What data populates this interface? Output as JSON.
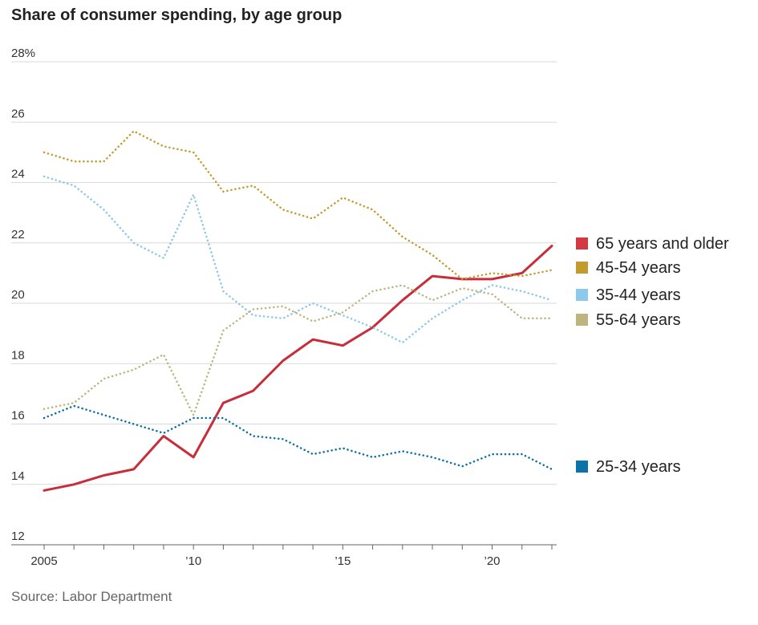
{
  "chart_data": {
    "type": "line",
    "title": "Share of consumer spending, by age group",
    "source": "Source: Labor Department",
    "xlabel": "",
    "ylabel": "",
    "xlim": [
      2005,
      2022
    ],
    "ylim": [
      12,
      28
    ],
    "grid": true,
    "y_ticks": [
      {
        "value": 28,
        "label": "28%"
      },
      {
        "value": 26,
        "label": "26"
      },
      {
        "value": 24,
        "label": "24"
      },
      {
        "value": 22,
        "label": "22"
      },
      {
        "value": 20,
        "label": "20"
      },
      {
        "value": 18,
        "label": "18"
      },
      {
        "value": 16,
        "label": "16"
      },
      {
        "value": 14,
        "label": "14"
      },
      {
        "value": 12,
        "label": "12"
      }
    ],
    "x_ticks": [
      {
        "value": 2005,
        "label": "2005"
      },
      {
        "value": 2010,
        "label": "’10"
      },
      {
        "value": 2015,
        "label": "’15"
      },
      {
        "value": 2020,
        "label": "’20"
      }
    ],
    "x": [
      2005,
      2006,
      2007,
      2008,
      2009,
      2010,
      2011,
      2012,
      2013,
      2014,
      2015,
      2016,
      2017,
      2018,
      2019,
      2020,
      2021,
      2022
    ],
    "legend_placement": "right",
    "series": [
      {
        "key": "s65",
        "name": "65 years and older",
        "color": "#c72e3a",
        "style": "solid",
        "values": [
          13.8,
          14.0,
          14.3,
          14.5,
          15.6,
          14.9,
          16.7,
          17.1,
          18.1,
          18.8,
          18.6,
          19.2,
          20.1,
          20.9,
          20.8,
          20.8,
          21.0,
          21.9
        ]
      },
      {
        "key": "s45",
        "name": "45-54 years",
        "color": "#c29a2b",
        "style": "dotted",
        "values": [
          25.0,
          24.7,
          24.7,
          25.7,
          25.2,
          25.0,
          23.7,
          23.9,
          23.1,
          22.8,
          23.5,
          23.1,
          22.2,
          21.6,
          20.8,
          21.0,
          20.9,
          21.1
        ]
      },
      {
        "key": "s35",
        "name": "35-44 years",
        "color": "#8ac7ea",
        "style": "dotted",
        "values": [
          24.2,
          23.9,
          23.1,
          22.0,
          21.5,
          23.6,
          20.4,
          19.6,
          19.5,
          20.0,
          19.6,
          19.2,
          18.7,
          19.5,
          20.1,
          20.6,
          20.4,
          20.1
        ]
      },
      {
        "key": "s55",
        "name": "55-64 years",
        "color": "#bdb47e",
        "style": "dotted",
        "values": [
          16.5,
          16.7,
          17.5,
          17.8,
          18.3,
          16.3,
          19.1,
          19.8,
          19.9,
          19.4,
          19.7,
          20.4,
          20.6,
          20.1,
          20.5,
          20.3,
          19.5,
          19.5
        ]
      },
      {
        "key": "s25",
        "name": "25-34 years",
        "color": "#0a6fa2",
        "style": "dotted",
        "values": [
          16.2,
          16.6,
          16.3,
          16.0,
          15.7,
          16.2,
          16.2,
          15.6,
          15.5,
          15.0,
          15.2,
          14.9,
          15.1,
          14.9,
          14.6,
          15.0,
          15.0,
          14.5
        ]
      }
    ],
    "legend_groups": [
      {
        "items": [
          {
            "key": "s65",
            "label": "65 years and older",
            "color": "#d33a3f"
          },
          {
            "key": "s45",
            "label": "45-54 years",
            "color": "#c49a2c"
          },
          {
            "key": "s35",
            "label": "35-44 years",
            "color": "#8cc9ec"
          },
          {
            "key": "s55",
            "label": "55-64 years",
            "color": "#bdb47e"
          }
        ]
      },
      {
        "items": [
          {
            "key": "s25",
            "label": "25-34 years",
            "color": "#0a74a8"
          }
        ]
      }
    ]
  }
}
